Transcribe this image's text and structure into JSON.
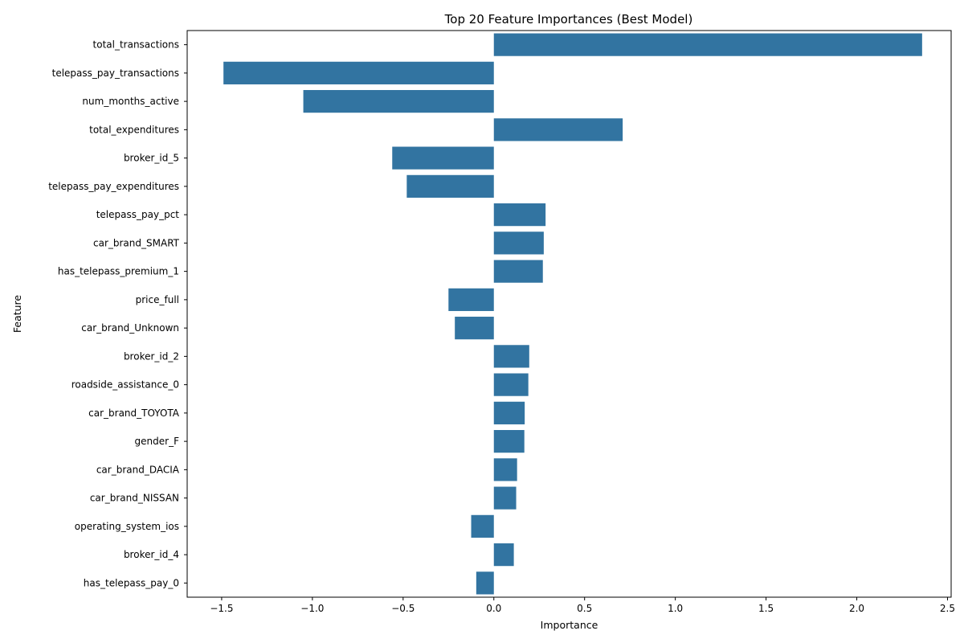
{
  "chart_data": {
    "type": "bar",
    "orientation": "horizontal",
    "title": "Top 20 Feature Importances (Best Model)",
    "xlabel": "Importance",
    "ylabel": "Feature",
    "xlim": [
      -1.69,
      2.52
    ],
    "xticks": [
      -1.5,
      -1.0,
      -0.5,
      0.0,
      0.5,
      1.0,
      1.5,
      2.0,
      2.5
    ],
    "xtick_labels": [
      "−1.5",
      "−1.0",
      "−0.5",
      "0.0",
      "0.5",
      "1.0",
      "1.5",
      "2.0",
      "2.5"
    ],
    "grid": false,
    "bar_color": "#3274a1",
    "categories": [
      "total_transactions",
      "telepass_pay_transactions",
      "num_months_active",
      "total_expenditures",
      "broker_id_5",
      "telepass_pay_expenditures",
      "telepass_pay_pct",
      "car_brand_SMART",
      "has_telepass_premium_1",
      "price_full",
      "car_brand_Unknown",
      "broker_id_2",
      "roadside_assistance_0",
      "car_brand_TOYOTA",
      "gender_F",
      "car_brand_DACIA",
      "car_brand_NISSAN",
      "operating_system_ios",
      "broker_id_4",
      "has_telepass_pay_0"
    ],
    "values": [
      2.36,
      -1.49,
      -1.05,
      0.71,
      -0.56,
      -0.48,
      0.285,
      0.275,
      0.27,
      -0.25,
      -0.215,
      0.195,
      0.19,
      0.17,
      0.168,
      0.128,
      0.123,
      -0.125,
      0.11,
      -0.097
    ]
  }
}
